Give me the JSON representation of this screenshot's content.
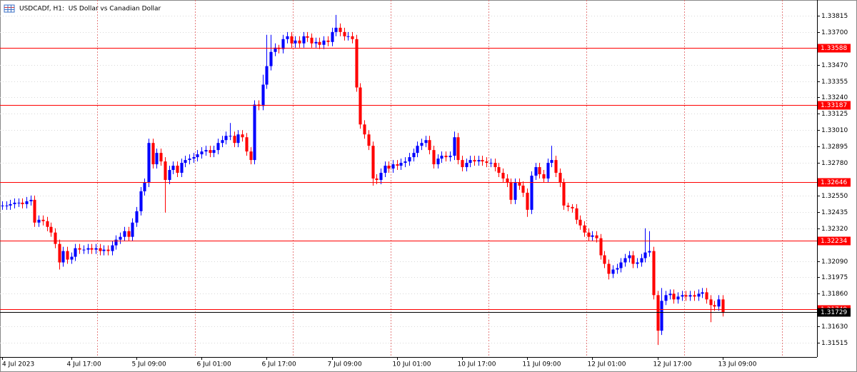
{
  "chart_data": {
    "type": "candlestick",
    "title": "USDCADf, H1:  US Dollar vs Canadian Dollar",
    "up_color": "#0000ff",
    "down_color": "#ff0000",
    "level_color": "#ff0000",
    "last_price_color": "#000000",
    "grid": true,
    "xlim": [
      -0.5,
      200.2
    ],
    "ylim": [
      1.31415,
      1.33925
    ],
    "xticks": [
      {
        "value": 0,
        "label": "4 Jul 2023"
      },
      {
        "value": 17,
        "label": "4 Jul 17:00"
      },
      {
        "value": 33,
        "label": "5 Jul 09:00"
      },
      {
        "value": 49,
        "label": "6 Jul 01:00"
      },
      {
        "value": 65,
        "label": "6 Jul 17:00"
      },
      {
        "value": 81,
        "label": "7 Jul 09:00"
      },
      {
        "value": 97,
        "label": "10 Jul 01:00"
      },
      {
        "value": 113,
        "label": "10 Jul 17:00"
      },
      {
        "value": 129,
        "label": "11 Jul 09:00"
      },
      {
        "value": 145,
        "label": "12 Jul 01:00"
      },
      {
        "value": 161,
        "label": "12 Jul 17:00"
      },
      {
        "value": 177,
        "label": "13 Jul 09:00"
      }
    ],
    "yticks": [
      {
        "value": 1.33815,
        "label": "1.33815"
      },
      {
        "value": 1.337,
        "label": "1.33700"
      },
      {
        "value": 1.3347,
        "label": "1.33470"
      },
      {
        "value": 1.33355,
        "label": "1.33355"
      },
      {
        "value": 1.3324,
        "label": "1.33240"
      },
      {
        "value": 1.33125,
        "label": "1.33125"
      },
      {
        "value": 1.3301,
        "label": "1.33010"
      },
      {
        "value": 1.32895,
        "label": "1.32895"
      },
      {
        "value": 1.3278,
        "label": "1.32780"
      },
      {
        "value": 1.3255,
        "label": "1.32550"
      },
      {
        "value": 1.32435,
        "label": "1.32435"
      },
      {
        "value": 1.3232,
        "label": "1.32320"
      },
      {
        "value": 1.3209,
        "label": "1.32090"
      },
      {
        "value": 1.31975,
        "label": "1.31975"
      },
      {
        "value": 1.3186,
        "label": "1.31860"
      },
      {
        "value": 1.3163,
        "label": "1.31630"
      },
      {
        "value": 1.31515,
        "label": "1.31515"
      }
    ],
    "levels": [
      1.33588,
      1.33187,
      1.32646,
      1.32234,
      1.31749
    ],
    "last_price": 1.31729,
    "open": [
      1.3248,
      1.3248,
      1.3248,
      1.3249,
      1.325,
      1.325,
      1.3249,
      1.3251,
      1.3252,
      1.3236,
      1.3238,
      1.3237,
      1.3233,
      1.3229,
      1.3221,
      1.3208,
      1.3216,
      1.321,
      1.3212,
      1.3218,
      1.3217,
      1.3217,
      1.3218,
      1.3217,
      1.3218,
      1.3216,
      1.3217,
      1.3216,
      1.322,
      1.3224,
      1.3226,
      1.323,
      1.3226,
      1.3236,
      1.3244,
      1.3258,
      1.3264,
      1.3292,
      1.3277,
      1.3285,
      1.3279,
      1.3266,
      1.3273,
      1.3276,
      1.3271,
      1.3278,
      1.328,
      1.3281,
      1.3282,
      1.3284,
      1.3286,
      1.3287,
      1.3285,
      1.3287,
      1.3292,
      1.3294,
      1.3297,
      1.3297,
      1.3292,
      1.3298,
      1.3296,
      1.3286,
      1.328,
      1.3319,
      1.3318,
      1.3333,
      1.3346,
      1.3356,
      1.3359,
      1.3358,
      1.3365,
      1.3367,
      1.3362,
      1.3364,
      1.3362,
      1.3367,
      1.3366,
      1.3362,
      1.3363,
      1.3361,
      1.3364,
      1.3363,
      1.337,
      1.3373,
      1.337,
      1.3367,
      1.3367,
      1.3365,
      1.3331,
      1.3305,
      1.3298,
      1.329,
      1.3267,
      1.3266,
      1.3271,
      1.3276,
      1.3274,
      1.3277,
      1.3276,
      1.3278,
      1.3279,
      1.3282,
      1.3285,
      1.329,
      1.3292,
      1.3294,
      1.3287,
      1.3277,
      1.3281,
      1.3283,
      1.3282,
      1.3283,
      1.3296,
      1.328,
      1.3275,
      1.3278,
      1.328,
      1.3279,
      1.328,
      1.3279,
      1.3278,
      1.3278,
      1.3275,
      1.3271,
      1.3267,
      1.3264,
      1.3252,
      1.3264,
      1.3262,
      1.3257,
      1.3245,
      1.3269,
      1.3275,
      1.327,
      1.3267,
      1.3278,
      1.328,
      1.3271,
      1.3264,
      1.3248,
      1.3247,
      1.3246,
      1.3238,
      1.3234,
      1.3229,
      1.3226,
      1.3227,
      1.3225,
      1.3213,
      1.3207,
      1.32,
      1.3203,
      1.3204,
      1.3208,
      1.3211,
      1.3213,
      1.3207,
      1.3208,
      1.3211,
      1.3215,
      1.3216,
      1.3185,
      1.316,
      1.3181,
      1.3185,
      1.3186,
      1.3182,
      1.3184,
      1.3185,
      1.3184,
      1.3185,
      1.3184,
      1.3186,
      1.3187,
      1.3182,
      1.3178,
      1.3177,
      1.3182
    ],
    "high": [
      1.3251,
      1.3251,
      1.3252,
      1.3253,
      1.3253,
      1.3253,
      1.3254,
      1.3255,
      1.3255,
      1.3241,
      1.3241,
      1.324,
      1.3236,
      1.3232,
      1.3224,
      1.3219,
      1.3219,
      1.3215,
      1.3221,
      1.3221,
      1.322,
      1.3221,
      1.3221,
      1.3221,
      1.3221,
      1.322,
      1.322,
      1.3223,
      1.3227,
      1.3229,
      1.3233,
      1.3233,
      1.3239,
      1.3247,
      1.3261,
      1.3267,
      1.3295,
      1.3295,
      1.3288,
      1.3288,
      1.3282,
      1.3276,
      1.3279,
      1.3279,
      1.3281,
      1.3283,
      1.3284,
      1.3285,
      1.3287,
      1.3289,
      1.329,
      1.329,
      1.329,
      1.3295,
      1.3297,
      1.33,
      1.3306,
      1.33,
      1.3301,
      1.3301,
      1.3299,
      1.3289,
      1.3322,
      1.3322,
      1.334,
      1.3368,
      1.3368,
      1.3362,
      1.3361,
      1.3368,
      1.337,
      1.337,
      1.3367,
      1.3367,
      1.337,
      1.337,
      1.3369,
      1.3366,
      1.3366,
      1.3367,
      1.3367,
      1.3373,
      1.3382,
      1.3376,
      1.3373,
      1.337,
      1.337,
      1.3368,
      1.3334,
      1.3308,
      1.3301,
      1.3293,
      1.327,
      1.3274,
      1.3279,
      1.3279,
      1.328,
      1.328,
      1.3281,
      1.3282,
      1.3285,
      1.3288,
      1.3293,
      1.3295,
      1.3297,
      1.3297,
      1.329,
      1.3284,
      1.3286,
      1.3286,
      1.3286,
      1.33,
      1.3299,
      1.3283,
      1.3281,
      1.3283,
      1.3283,
      1.3283,
      1.3283,
      1.3282,
      1.3281,
      1.3281,
      1.3278,
      1.3274,
      1.327,
      1.3267,
      1.3267,
      1.3267,
      1.3265,
      1.326,
      1.3272,
      1.3278,
      1.3278,
      1.3273,
      1.3281,
      1.329,
      1.3283,
      1.3274,
      1.3267,
      1.325,
      1.3249,
      1.3249,
      1.3241,
      1.3237,
      1.3232,
      1.323,
      1.323,
      1.3228,
      1.3216,
      1.321,
      1.3206,
      1.3207,
      1.3211,
      1.3214,
      1.3216,
      1.3216,
      1.3211,
      1.3214,
      1.3232,
      1.323,
      1.3219,
      1.3188,
      1.319,
      1.3188,
      1.3189,
      1.3189,
      1.3187,
      1.3188,
      1.3188,
      1.3188,
      1.3188,
      1.3189,
      1.319,
      1.319,
      1.3185,
      1.3181,
      1.3185,
      1.3185
    ],
    "low": [
      1.3245,
      1.3245,
      1.3245,
      1.3246,
      1.3247,
      1.3246,
      1.3246,
      1.3248,
      1.3233,
      1.3233,
      1.3234,
      1.323,
      1.3226,
      1.3218,
      1.3203,
      1.3205,
      1.3207,
      1.3207,
      1.3209,
      1.3214,
      1.3214,
      1.3214,
      1.3214,
      1.3214,
      1.3213,
      1.3213,
      1.3213,
      1.3213,
      1.3217,
      1.3221,
      1.3223,
      1.3223,
      1.3223,
      1.3233,
      1.3241,
      1.3255,
      1.3261,
      1.3274,
      1.3274,
      1.3276,
      1.3243,
      1.3263,
      1.327,
      1.3268,
      1.3268,
      1.3275,
      1.3277,
      1.3278,
      1.3279,
      1.3281,
      1.3283,
      1.3282,
      1.3282,
      1.3284,
      1.3289,
      1.3291,
      1.3294,
      1.3289,
      1.3289,
      1.3293,
      1.3283,
      1.3277,
      1.3277,
      1.3315,
      1.3315,
      1.333,
      1.3343,
      1.3353,
      1.3355,
      1.3355,
      1.3362,
      1.3359,
      1.3359,
      1.3359,
      1.3359,
      1.3363,
      1.3359,
      1.3359,
      1.3358,
      1.3358,
      1.336,
      1.336,
      1.3367,
      1.3367,
      1.3364,
      1.3364,
      1.3362,
      1.3328,
      1.3302,
      1.3295,
      1.3287,
      1.3262,
      1.3263,
      1.3263,
      1.3268,
      1.3271,
      1.3271,
      1.3273,
      1.3273,
      1.3275,
      1.3276,
      1.3279,
      1.3282,
      1.3287,
      1.3289,
      1.3284,
      1.3274,
      1.3274,
      1.3278,
      1.3279,
      1.3279,
      1.328,
      1.3277,
      1.3272,
      1.3272,
      1.3275,
      1.3276,
      1.3276,
      1.3276,
      1.3275,
      1.3275,
      1.3272,
      1.3268,
      1.3264,
      1.3261,
      1.3249,
      1.3249,
      1.3259,
      1.3254,
      1.324,
      1.3242,
      1.3266,
      1.3267,
      1.3264,
      1.3264,
      1.3275,
      1.3268,
      1.3261,
      1.3245,
      1.3244,
      1.3243,
      1.3235,
      1.3231,
      1.3226,
      1.3223,
      1.3223,
      1.3222,
      1.321,
      1.3204,
      1.3196,
      1.3197,
      1.32,
      1.3201,
      1.3205,
      1.3208,
      1.3204,
      1.3204,
      1.3205,
      1.3208,
      1.3212,
      1.3182,
      1.315,
      1.3157,
      1.3178,
      1.3182,
      1.3179,
      1.3179,
      1.3181,
      1.3181,
      1.3181,
      1.3181,
      1.3181,
      1.3183,
      1.3179,
      1.3166,
      1.3174,
      1.3174,
      1.317
    ],
    "close": [
      1.3248,
      1.3248,
      1.3249,
      1.325,
      1.325,
      1.3249,
      1.3251,
      1.3252,
      1.3236,
      1.3238,
      1.3237,
      1.3233,
      1.3229,
      1.3221,
      1.3208,
      1.3216,
      1.321,
      1.3212,
      1.3218,
      1.3217,
      1.3217,
      1.3218,
      1.3217,
      1.3218,
      1.3216,
      1.3217,
      1.3216,
      1.322,
      1.3224,
      1.3226,
      1.323,
      1.3226,
      1.3236,
      1.3244,
      1.3258,
      1.3264,
      1.3292,
      1.3277,
      1.3285,
      1.3279,
      1.3266,
      1.3273,
      1.3276,
      1.3271,
      1.3278,
      1.328,
      1.3281,
      1.3282,
      1.3284,
      1.3286,
      1.3287,
      1.3285,
      1.3287,
      1.3292,
      1.3294,
      1.3297,
      1.3297,
      1.3292,
      1.3298,
      1.3296,
      1.3286,
      1.328,
      1.3319,
      1.3318,
      1.3333,
      1.3346,
      1.3356,
      1.3359,
      1.3358,
      1.3365,
      1.3367,
      1.3362,
      1.3364,
      1.3362,
      1.3367,
      1.3366,
      1.3362,
      1.3363,
      1.3361,
      1.3364,
      1.3363,
      1.337,
      1.3373,
      1.337,
      1.3367,
      1.3367,
      1.3365,
      1.3331,
      1.3305,
      1.3298,
      1.329,
      1.3267,
      1.3266,
      1.3271,
      1.3276,
      1.3274,
      1.3277,
      1.3276,
      1.3278,
      1.3279,
      1.3282,
      1.3285,
      1.329,
      1.3292,
      1.3294,
      1.3287,
      1.3277,
      1.3281,
      1.3283,
      1.3282,
      1.3283,
      1.3296,
      1.328,
      1.3275,
      1.3278,
      1.328,
      1.3279,
      1.328,
      1.3279,
      1.3278,
      1.3278,
      1.3275,
      1.3271,
      1.3267,
      1.3264,
      1.3252,
      1.3264,
      1.3262,
      1.3257,
      1.3245,
      1.3269,
      1.3275,
      1.327,
      1.3267,
      1.3278,
      1.328,
      1.3271,
      1.3264,
      1.3248,
      1.3247,
      1.3246,
      1.3238,
      1.3234,
      1.3229,
      1.3226,
      1.3227,
      1.3225,
      1.3213,
      1.3207,
      1.32,
      1.3203,
      1.3204,
      1.3208,
      1.3211,
      1.3213,
      1.3207,
      1.3208,
      1.3211,
      1.3215,
      1.3216,
      1.3185,
      1.316,
      1.3181,
      1.3185,
      1.3186,
      1.3182,
      1.3184,
      1.3185,
      1.3184,
      1.3185,
      1.3184,
      1.3186,
      1.3187,
      1.3182,
      1.3178,
      1.3177,
      1.3182,
      1.3173
    ]
  }
}
